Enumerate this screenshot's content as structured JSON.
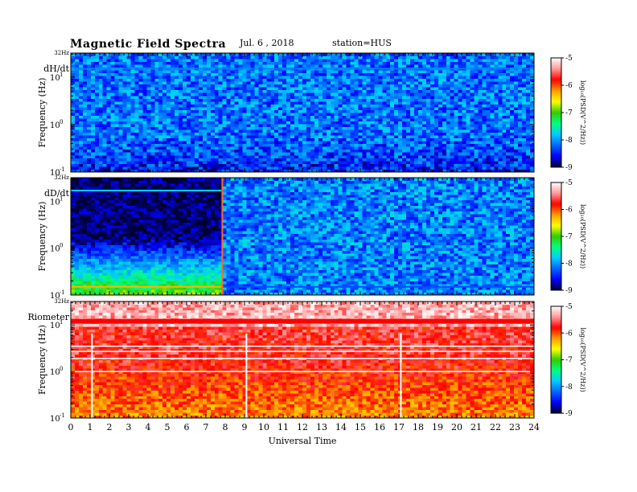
{
  "header": {
    "title": "Magnetic Field Spectra",
    "date": "Jul.  6 , 2018",
    "station": "station=HUS"
  },
  "chart_data": {
    "type": "heatmap",
    "xlabel": "Universal Time",
    "x_ticks": [
      "0",
      "1",
      "2",
      "3",
      "4",
      "5",
      "6",
      "7",
      "8",
      "9",
      "10",
      "11",
      "12",
      "13",
      "14",
      "15",
      "16",
      "17",
      "18",
      "19",
      "20",
      "21",
      "22",
      "23",
      "24"
    ],
    "xlim": [
      0,
      24
    ],
    "ylabel": "Frequency  (Hz)",
    "y_scale": "log",
    "ylim_hz": [
      0.1,
      32
    ],
    "y_ticks": [
      {
        "value": 0.1,
        "label": "10"
      },
      {
        "value": 1,
        "label": "10"
      },
      {
        "value": 10,
        "label": "10"
      },
      {
        "value": 32,
        "label": "32Hz"
      }
    ],
    "y_tick_exponents": [
      "-1",
      "0",
      "1"
    ],
    "colorbar": {
      "label": "log10(PSD(V^2/Hz))",
      "label_display": "log₁₀(PSD(V^2/Hz))",
      "range": [
        -9,
        -5
      ],
      "ticks": [
        "-5",
        "-6",
        "-7",
        "-8",
        "-9"
      ],
      "colors": [
        "#000033",
        "#0000ff",
        "#0066ff",
        "#00ccff",
        "#00ff80",
        "#33cc00",
        "#ffff00",
        "#ff9900",
        "#ff0000",
        "#ff9999",
        "#ffffff"
      ]
    },
    "panels": [
      {
        "name": "dH/dt",
        "description_level": "quiet broadband",
        "mean_log_psd": -8.15,
        "low_freq_log_psd": -8.5,
        "features": [
          {
            "kind": "line",
            "freq_hz": 15,
            "log_psd": -8.1
          }
        ]
      },
      {
        "name": "dD/dt",
        "break_time_ut": 7.85,
        "before_break": {
          "mean_log_psd": -8.9,
          "low_freq_log_psd": -6.9
        },
        "after_break": {
          "mean_log_psd": -8.1
        },
        "features": [
          {
            "kind": "line",
            "freq_hz": 17,
            "log_psd": -7.8,
            "ut_range": [
              0,
              7.8
            ]
          },
          {
            "kind": "line",
            "freq_hz": 0.15,
            "log_psd": -6.3,
            "ut_range": [
              0,
              7.8
            ]
          },
          {
            "kind": "line",
            "freq_hz": 0.15,
            "log_psd": -8.3,
            "ut_range": [
              7.9,
              24
            ]
          }
        ]
      },
      {
        "name": "Riometer",
        "high_freq_log_psd": -5.3,
        "mid_freq_log_psd": -5.7,
        "low_freq_log_psd": -6.2,
        "features": [
          {
            "kind": "band",
            "freq_hz": 12,
            "log_psd": -5.8
          },
          {
            "kind": "white_lines",
            "freq_hz": [
              1,
              1.9,
              2.7,
              3.5
            ],
            "log_psd": -5.0
          },
          {
            "kind": "vertical_gaps",
            "ut": [
              1.1,
              9.1,
              17.1
            ]
          }
        ]
      }
    ]
  }
}
